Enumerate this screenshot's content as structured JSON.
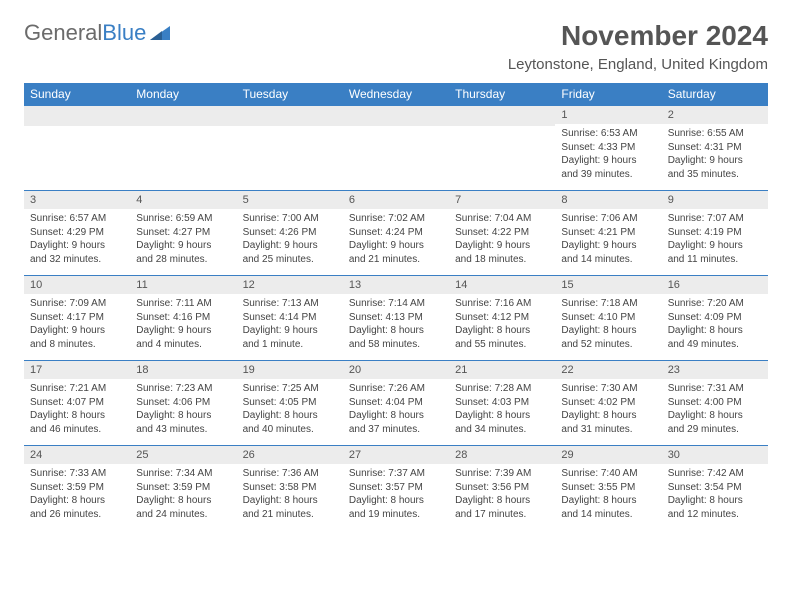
{
  "brand": {
    "left": "General",
    "right": "Blue"
  },
  "title": "November 2024",
  "location": "Leytonstone, England, United Kingdom",
  "colors": {
    "header_bg": "#3a7fc4",
    "header_text": "#ffffff",
    "daynum_bg": "#ececec",
    "rule": "#3a7fc4",
    "title_text": "#555555",
    "body_text": "#444444"
  },
  "weekdays": [
    "Sunday",
    "Monday",
    "Tuesday",
    "Wednesday",
    "Thursday",
    "Friday",
    "Saturday"
  ],
  "weeks": [
    [
      {
        "day": "",
        "sunrise": "",
        "sunset": "",
        "daylight": ""
      },
      {
        "day": "",
        "sunrise": "",
        "sunset": "",
        "daylight": ""
      },
      {
        "day": "",
        "sunrise": "",
        "sunset": "",
        "daylight": ""
      },
      {
        "day": "",
        "sunrise": "",
        "sunset": "",
        "daylight": ""
      },
      {
        "day": "",
        "sunrise": "",
        "sunset": "",
        "daylight": ""
      },
      {
        "day": "1",
        "sunrise": "Sunrise: 6:53 AM",
        "sunset": "Sunset: 4:33 PM",
        "daylight": "Daylight: 9 hours and 39 minutes."
      },
      {
        "day": "2",
        "sunrise": "Sunrise: 6:55 AM",
        "sunset": "Sunset: 4:31 PM",
        "daylight": "Daylight: 9 hours and 35 minutes."
      }
    ],
    [
      {
        "day": "3",
        "sunrise": "Sunrise: 6:57 AM",
        "sunset": "Sunset: 4:29 PM",
        "daylight": "Daylight: 9 hours and 32 minutes."
      },
      {
        "day": "4",
        "sunrise": "Sunrise: 6:59 AM",
        "sunset": "Sunset: 4:27 PM",
        "daylight": "Daylight: 9 hours and 28 minutes."
      },
      {
        "day": "5",
        "sunrise": "Sunrise: 7:00 AM",
        "sunset": "Sunset: 4:26 PM",
        "daylight": "Daylight: 9 hours and 25 minutes."
      },
      {
        "day": "6",
        "sunrise": "Sunrise: 7:02 AM",
        "sunset": "Sunset: 4:24 PM",
        "daylight": "Daylight: 9 hours and 21 minutes."
      },
      {
        "day": "7",
        "sunrise": "Sunrise: 7:04 AM",
        "sunset": "Sunset: 4:22 PM",
        "daylight": "Daylight: 9 hours and 18 minutes."
      },
      {
        "day": "8",
        "sunrise": "Sunrise: 7:06 AM",
        "sunset": "Sunset: 4:21 PM",
        "daylight": "Daylight: 9 hours and 14 minutes."
      },
      {
        "day": "9",
        "sunrise": "Sunrise: 7:07 AM",
        "sunset": "Sunset: 4:19 PM",
        "daylight": "Daylight: 9 hours and 11 minutes."
      }
    ],
    [
      {
        "day": "10",
        "sunrise": "Sunrise: 7:09 AM",
        "sunset": "Sunset: 4:17 PM",
        "daylight": "Daylight: 9 hours and 8 minutes."
      },
      {
        "day": "11",
        "sunrise": "Sunrise: 7:11 AM",
        "sunset": "Sunset: 4:16 PM",
        "daylight": "Daylight: 9 hours and 4 minutes."
      },
      {
        "day": "12",
        "sunrise": "Sunrise: 7:13 AM",
        "sunset": "Sunset: 4:14 PM",
        "daylight": "Daylight: 9 hours and 1 minute."
      },
      {
        "day": "13",
        "sunrise": "Sunrise: 7:14 AM",
        "sunset": "Sunset: 4:13 PM",
        "daylight": "Daylight: 8 hours and 58 minutes."
      },
      {
        "day": "14",
        "sunrise": "Sunrise: 7:16 AM",
        "sunset": "Sunset: 4:12 PM",
        "daylight": "Daylight: 8 hours and 55 minutes."
      },
      {
        "day": "15",
        "sunrise": "Sunrise: 7:18 AM",
        "sunset": "Sunset: 4:10 PM",
        "daylight": "Daylight: 8 hours and 52 minutes."
      },
      {
        "day": "16",
        "sunrise": "Sunrise: 7:20 AM",
        "sunset": "Sunset: 4:09 PM",
        "daylight": "Daylight: 8 hours and 49 minutes."
      }
    ],
    [
      {
        "day": "17",
        "sunrise": "Sunrise: 7:21 AM",
        "sunset": "Sunset: 4:07 PM",
        "daylight": "Daylight: 8 hours and 46 minutes."
      },
      {
        "day": "18",
        "sunrise": "Sunrise: 7:23 AM",
        "sunset": "Sunset: 4:06 PM",
        "daylight": "Daylight: 8 hours and 43 minutes."
      },
      {
        "day": "19",
        "sunrise": "Sunrise: 7:25 AM",
        "sunset": "Sunset: 4:05 PM",
        "daylight": "Daylight: 8 hours and 40 minutes."
      },
      {
        "day": "20",
        "sunrise": "Sunrise: 7:26 AM",
        "sunset": "Sunset: 4:04 PM",
        "daylight": "Daylight: 8 hours and 37 minutes."
      },
      {
        "day": "21",
        "sunrise": "Sunrise: 7:28 AM",
        "sunset": "Sunset: 4:03 PM",
        "daylight": "Daylight: 8 hours and 34 minutes."
      },
      {
        "day": "22",
        "sunrise": "Sunrise: 7:30 AM",
        "sunset": "Sunset: 4:02 PM",
        "daylight": "Daylight: 8 hours and 31 minutes."
      },
      {
        "day": "23",
        "sunrise": "Sunrise: 7:31 AM",
        "sunset": "Sunset: 4:00 PM",
        "daylight": "Daylight: 8 hours and 29 minutes."
      }
    ],
    [
      {
        "day": "24",
        "sunrise": "Sunrise: 7:33 AM",
        "sunset": "Sunset: 3:59 PM",
        "daylight": "Daylight: 8 hours and 26 minutes."
      },
      {
        "day": "25",
        "sunrise": "Sunrise: 7:34 AM",
        "sunset": "Sunset: 3:59 PM",
        "daylight": "Daylight: 8 hours and 24 minutes."
      },
      {
        "day": "26",
        "sunrise": "Sunrise: 7:36 AM",
        "sunset": "Sunset: 3:58 PM",
        "daylight": "Daylight: 8 hours and 21 minutes."
      },
      {
        "day": "27",
        "sunrise": "Sunrise: 7:37 AM",
        "sunset": "Sunset: 3:57 PM",
        "daylight": "Daylight: 8 hours and 19 minutes."
      },
      {
        "day": "28",
        "sunrise": "Sunrise: 7:39 AM",
        "sunset": "Sunset: 3:56 PM",
        "daylight": "Daylight: 8 hours and 17 minutes."
      },
      {
        "day": "29",
        "sunrise": "Sunrise: 7:40 AM",
        "sunset": "Sunset: 3:55 PM",
        "daylight": "Daylight: 8 hours and 14 minutes."
      },
      {
        "day": "30",
        "sunrise": "Sunrise: 7:42 AM",
        "sunset": "Sunset: 3:54 PM",
        "daylight": "Daylight: 8 hours and 12 minutes."
      }
    ]
  ]
}
